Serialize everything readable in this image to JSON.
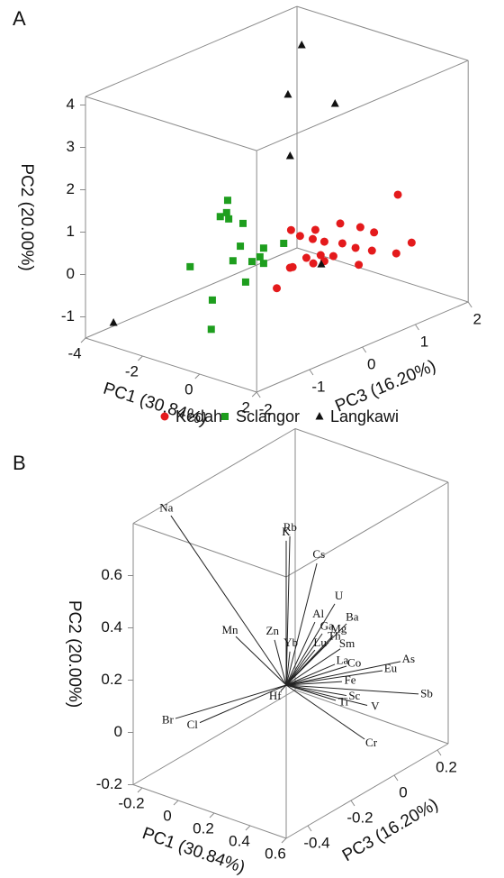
{
  "chart_data": [
    {
      "type": "scatter3d",
      "panel_label": "A",
      "xlabel": "PC1 (30.84%)",
      "ylabel": "PC2 (20.00%)",
      "zlabel": "PC3 (16.20%)",
      "xlim": [
        -4,
        2
      ],
      "ylim": [
        -1.5,
        4.2
      ],
      "zlim": [
        -2,
        2
      ],
      "xticks": [
        -4,
        -2,
        0,
        2
      ],
      "yticks": [
        -1,
        0,
        1,
        2,
        3,
        4
      ],
      "zticks": [
        -2,
        -1,
        0,
        1,
        2
      ],
      "legend": "bottom",
      "series": [
        {
          "name": "Kedah",
          "color": "#e41a1c",
          "marker": "circle",
          "x": [
            1.5,
            1.5,
            1.5,
            1.5,
            1.5,
            1.5,
            1.5,
            1.5,
            1.5,
            1.5,
            1.5,
            1.5,
            1.5,
            1.5,
            1.5,
            1.5,
            1.5,
            1.5,
            1.5,
            1.5,
            1.5,
            1.5,
            1.5
          ],
          "y": [
            1.49,
            1.39,
            1.49,
            1.1,
            0.84,
            0.22,
            1.73,
            1.5,
            1.3,
            1.12,
            0.9,
            0.66,
            0.12,
            0.43,
            0.84,
            0.69,
            0.84,
            0.72,
            0.92,
            0.23,
            0.66,
            0.5,
            0.85
          ],
          "z": [
            0.94,
            -0.15,
            -0.62,
            0.23,
            0.49,
            1.2,
            -1.08,
            -0.91,
            -0.67,
            -0.45,
            -0.11,
            0.14,
            0.91,
            0.45,
            -0.52,
            -0.28,
            -1.05,
            -0.66,
            -0.79,
            0.2,
            -0.45,
            -1.35,
            -1.1
          ]
        },
        {
          "name": "Sclangor",
          "color": "#1e9e1e",
          "marker": "square",
          "x": [
            -1,
            -1,
            -1,
            -1,
            -1,
            -1,
            -1,
            -1,
            -1,
            -1,
            -1,
            -1,
            -1,
            -1,
            -1,
            -1
          ],
          "y": [
            1.82,
            1.54,
            1.37,
            1.51,
            1.12,
            0.24,
            0.33,
            0.61,
            0.16,
            0.13,
            0.34,
            -0.29,
            0.63,
            -0.38,
            -1.06,
            -0.03
          ],
          "z": [
            -0.93,
            -0.95,
            -0.91,
            -1.07,
            -0.64,
            0.13,
            -0.25,
            -0.69,
            -0.32,
            -0.47,
            -0.83,
            -0.59,
            -1.64,
            -1.22,
            -1.24,
            -0.25
          ]
        },
        {
          "name": "Langkawi",
          "color": "#111111",
          "marker": "triangle",
          "x": [
            -2,
            -2,
            -2,
            -2,
            -2,
            -3.5
          ],
          "y": [
            4.24,
            3.21,
            2.52,
            1.74,
            -1.13,
            -1.17
          ],
          "z": [
            1.01,
            0.75,
            1.64,
            0.79,
            1.38,
            -1.74
          ]
        }
      ]
    },
    {
      "type": "biplot3d",
      "panel_label": "B",
      "xlabel": "PC1 (30.84%)",
      "ylabel": "PC2 (20.00%)",
      "zlabel": "PC3 (16.20%)",
      "xlim": [
        -0.25,
        0.6
      ],
      "ylim": [
        -0.2,
        0.8
      ],
      "zlim": [
        -0.5,
        0.25
      ],
      "xticks": [
        -0.2,
        0,
        0.2,
        0.4,
        0.6
      ],
      "yticks": [
        -0.2,
        0,
        0.2,
        0.4,
        0.6
      ],
      "zticks": [
        -0.4,
        -0.2,
        0,
        0.2
      ],
      "color": "#222222",
      "vectors": {
        "labels": [
          "Na",
          "Rb",
          "K",
          "Cs",
          "U",
          "Ba",
          "Al",
          "Ga",
          "Mg",
          "Th",
          "Lu",
          "Sm",
          "La",
          "Co",
          "Eu",
          "As",
          "Fe",
          "Sb",
          "V",
          "Sc",
          "Ti",
          "Cr",
          "Hf",
          "Yb",
          "Zn",
          "Mn",
          "Br",
          "Cl"
        ],
        "x": [
          -0.2,
          0,
          0,
          0,
          0,
          0.1,
          0,
          0,
          0,
          0,
          0,
          0.1,
          0.1,
          0.1,
          0.3,
          0.4,
          0.1,
          0.5,
          0.25,
          0.15,
          0.1,
          0.3,
          0.05,
          0,
          0,
          -0.1,
          -0.2,
          -0.15
        ],
        "y": [
          0.777,
          0.561,
          0.552,
          0.397,
          0.202,
          0.164,
          0.177,
          0.116,
          0.085,
          0.068,
          0.07,
          0.082,
          0.035,
          0.002,
          0.033,
          0.092,
          -0.047,
          -0.008,
          -0.098,
          -0.078,
          -0.105,
          -0.189,
          0.022,
          0.12,
          0.199,
          0.234,
          -0.009,
          -0.047
        ],
        "z": [
          -0.367,
          0.017,
          0,
          0.142,
          0.225,
          0.196,
          0.133,
          0.167,
          0.217,
          0.196,
          0.133,
          0.167,
          0.142,
          0.196,
          0.196,
          0.196,
          0.175,
          0.196,
          0.167,
          0.154,
          0.146,
          0.113,
          -0.067,
          0.017,
          -0.054,
          -0.15,
          -0.346,
          -0.275
        ]
      }
    }
  ]
}
